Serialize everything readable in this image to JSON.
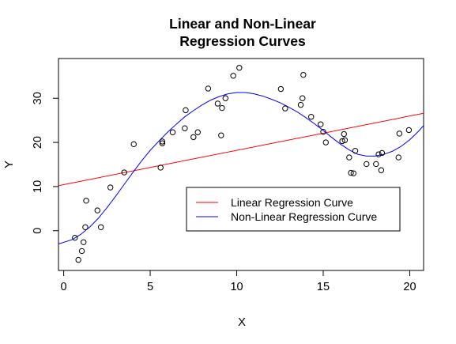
{
  "chart_data": {
    "type": "scatter",
    "title_lines": [
      "Linear and Non-Linear",
      "Regression Curves"
    ],
    "xlabel": "X",
    "ylabel": "Y",
    "xlim": [
      -0.3,
      20.8
    ],
    "ylim": [
      -9,
      39
    ],
    "x_ticks": [
      0,
      5,
      10,
      15,
      20
    ],
    "y_ticks": [
      0,
      10,
      20,
      30
    ],
    "grid": false,
    "legend_position": "bottom-right",
    "points": [
      {
        "x": 0.65,
        "y": -1.6
      },
      {
        "x": 0.85,
        "y": -6.6
      },
      {
        "x": 1.05,
        "y": -4.6
      },
      {
        "x": 1.15,
        "y": -2.6
      },
      {
        "x": 1.25,
        "y": 0.8
      },
      {
        "x": 1.3,
        "y": 6.8
      },
      {
        "x": 1.95,
        "y": 4.6
      },
      {
        "x": 2.15,
        "y": 0.8
      },
      {
        "x": 2.7,
        "y": 9.8
      },
      {
        "x": 3.5,
        "y": 13.2
      },
      {
        "x": 4.05,
        "y": 19.6
      },
      {
        "x": 5.6,
        "y": 14.3
      },
      {
        "x": 5.7,
        "y": 19.8
      },
      {
        "x": 5.7,
        "y": 20.2
      },
      {
        "x": 6.3,
        "y": 22.3
      },
      {
        "x": 7.0,
        "y": 23.2
      },
      {
        "x": 7.05,
        "y": 27.3
      },
      {
        "x": 7.5,
        "y": 21.2
      },
      {
        "x": 7.75,
        "y": 22.3
      },
      {
        "x": 8.35,
        "y": 32.2
      },
      {
        "x": 8.9,
        "y": 28.8
      },
      {
        "x": 9.1,
        "y": 21.6
      },
      {
        "x": 9.15,
        "y": 27.8
      },
      {
        "x": 9.35,
        "y": 30.0
      },
      {
        "x": 9.8,
        "y": 35.1
      },
      {
        "x": 10.15,
        "y": 36.9
      },
      {
        "x": 12.55,
        "y": 32.1
      },
      {
        "x": 12.8,
        "y": 27.7
      },
      {
        "x": 13.7,
        "y": 28.5
      },
      {
        "x": 13.8,
        "y": 30.0
      },
      {
        "x": 13.85,
        "y": 35.3
      },
      {
        "x": 14.3,
        "y": 25.8
      },
      {
        "x": 14.85,
        "y": 24.1
      },
      {
        "x": 15.0,
        "y": 22.4
      },
      {
        "x": 15.15,
        "y": 20.0
      },
      {
        "x": 16.1,
        "y": 20.3
      },
      {
        "x": 16.2,
        "y": 21.9
      },
      {
        "x": 16.25,
        "y": 20.5
      },
      {
        "x": 16.5,
        "y": 16.6
      },
      {
        "x": 16.6,
        "y": 13.1
      },
      {
        "x": 16.75,
        "y": 13.0
      },
      {
        "x": 16.85,
        "y": 18.1
      },
      {
        "x": 17.5,
        "y": 15.1
      },
      {
        "x": 18.05,
        "y": 15.1
      },
      {
        "x": 18.2,
        "y": 17.3
      },
      {
        "x": 18.35,
        "y": 13.7
      },
      {
        "x": 18.4,
        "y": 17.6
      },
      {
        "x": 19.35,
        "y": 16.6
      },
      {
        "x": 19.4,
        "y": 22.0
      },
      {
        "x": 19.95,
        "y": 22.8
      }
    ],
    "series": [
      {
        "name": "Linear Regression Curve",
        "color": "#ff0000",
        "kind": "line",
        "x": [
          -0.3,
          20.8
        ],
        "y": [
          10.2,
          26.6
        ]
      },
      {
        "name": "Non-Linear Regression Curve",
        "color": "#0000ff",
        "kind": "curve",
        "x": [
          -0.3,
          0.5,
          1,
          1.5,
          2,
          2.5,
          3,
          3.5,
          4,
          4.5,
          5,
          5.5,
          6,
          6.5,
          7,
          7.5,
          8,
          8.5,
          9,
          9.5,
          10,
          10.5,
          11,
          11.5,
          12,
          12.5,
          13,
          13.5,
          14,
          14.5,
          15,
          15.5,
          16,
          16.5,
          17,
          17.5,
          18,
          18.5,
          19,
          19.5,
          20,
          20.5,
          20.8
        ],
        "y": [
          -3,
          -2,
          -0.8,
          0.8,
          2.8,
          5.2,
          7.8,
          10.5,
          13.2,
          15.8,
          18.2,
          20.3,
          22.3,
          24.1,
          25.8,
          27.2,
          28.5,
          29.6,
          30.4,
          31.0,
          31.3,
          31.3,
          31.0,
          30.5,
          29.8,
          29.0,
          28.0,
          26.9,
          25.6,
          24.2,
          22.7,
          21.1,
          19.6,
          18.3,
          17.3,
          16.9,
          16.9,
          17.3,
          18.0,
          19.1,
          20.6,
          22.5,
          23.8
        ]
      }
    ]
  }
}
